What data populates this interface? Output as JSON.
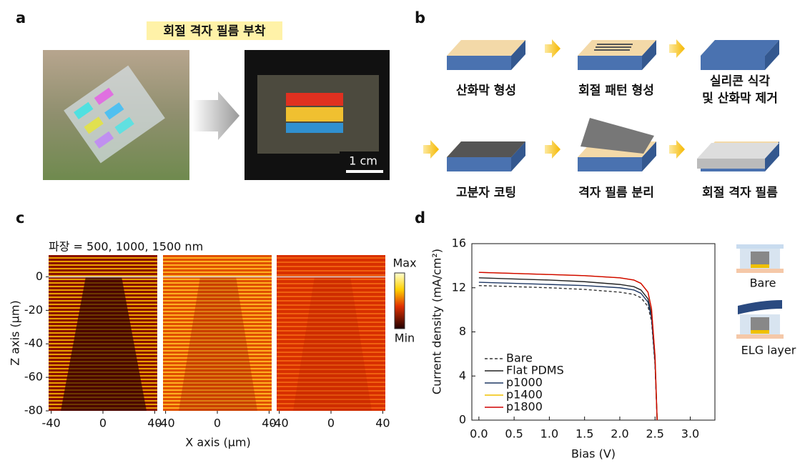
{
  "panel_a": {
    "label": "a",
    "title": "회절 격자 필름 부착",
    "scale_bar": "1 cm"
  },
  "panel_b": {
    "label": "b",
    "steps": [
      [
        "산화막 형성"
      ],
      [
        "회절 패턴 형성"
      ],
      [
        "실리콘 식각",
        "및 산화막 제거"
      ],
      [
        "고분자 코팅"
      ],
      [
        "격자 필름 분리"
      ],
      [
        "회절 격자 필름"
      ]
    ]
  },
  "panel_c": {
    "label": "c",
    "caption": "파장 = 500, 1000, 1500 nm",
    "xlabel": "X axis (μm)",
    "ylabel": "Z axis (μm)",
    "xlim": [
      -42,
      42
    ],
    "xticks": [
      -40,
      0,
      40
    ],
    "ylim": [
      -80,
      13
    ],
    "yticks": [
      0,
      -20,
      -40,
      -60,
      -80
    ],
    "colorbar": {
      "max": "Max",
      "min": "Min"
    }
  },
  "chart_data": {
    "type": "line",
    "label": "d",
    "xlabel": "Bias (V)",
    "ylabel": "Current density (mA/cm²)",
    "xlim": [
      -0.1,
      3.35
    ],
    "xticks": [
      {
        "value": 0,
        "label": "0.0"
      },
      0.5,
      {
        "value": 1,
        "label": "1.0"
      },
      1.5,
      {
        "value": 2,
        "label": "2.0"
      },
      2.5,
      {
        "value": 3,
        "label": "3.0"
      }
    ],
    "ylim": [
      0,
      16
    ],
    "yticks": [
      0,
      4,
      8,
      12,
      16
    ],
    "legend": "lower left",
    "x": [
      0,
      0.5,
      1,
      1.5,
      2,
      2.2,
      2.3,
      2.4,
      2.45,
      2.5,
      2.53
    ],
    "series": [
      {
        "name": "Bare",
        "color": "#333333",
        "style": "dashed",
        "values": [
          12.2,
          12.1,
          12.0,
          11.85,
          11.6,
          11.4,
          11.1,
          10.3,
          9.0,
          5.0,
          0
        ]
      },
      {
        "name": "Flat PDMS",
        "color": "#222222",
        "style": "solid",
        "values": [
          12.9,
          12.8,
          12.7,
          12.55,
          12.3,
          12.1,
          11.8,
          11.0,
          9.6,
          5.4,
          0
        ]
      },
      {
        "name": "p1000",
        "color": "#1f3864",
        "style": "solid",
        "values": [
          12.5,
          12.4,
          12.3,
          12.2,
          12.0,
          11.8,
          11.5,
          10.7,
          9.3,
          5.2,
          0
        ]
      },
      {
        "name": "p1400",
        "color": "#f0c000",
        "style": "solid",
        "values": [
          13.4,
          13.3,
          13.2,
          13.1,
          12.9,
          12.7,
          12.4,
          11.6,
          10.1,
          5.8,
          0
        ]
      },
      {
        "name": "p1800",
        "color": "#d00000",
        "style": "solid",
        "values": [
          13.4,
          13.3,
          13.2,
          13.1,
          12.9,
          12.7,
          12.4,
          11.6,
          10.1,
          5.8,
          0
        ]
      }
    ]
  },
  "panel_d_icons": [
    "Bare",
    "ELG layer"
  ]
}
